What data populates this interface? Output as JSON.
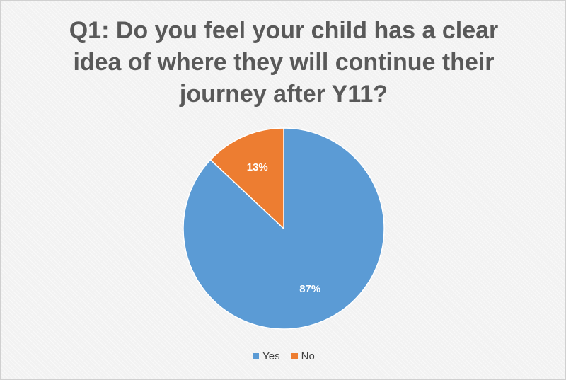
{
  "chart_data": {
    "type": "pie",
    "title": "Q1: Do you feel your child has a clear idea of where they will continue their journey after Y11?",
    "categories": [
      "Yes",
      "No"
    ],
    "values": [
      87,
      13
    ],
    "data_labels": [
      "87%",
      "13%"
    ],
    "colors": [
      "#5b9bd5",
      "#ed7d31"
    ],
    "legend_position": "bottom"
  }
}
